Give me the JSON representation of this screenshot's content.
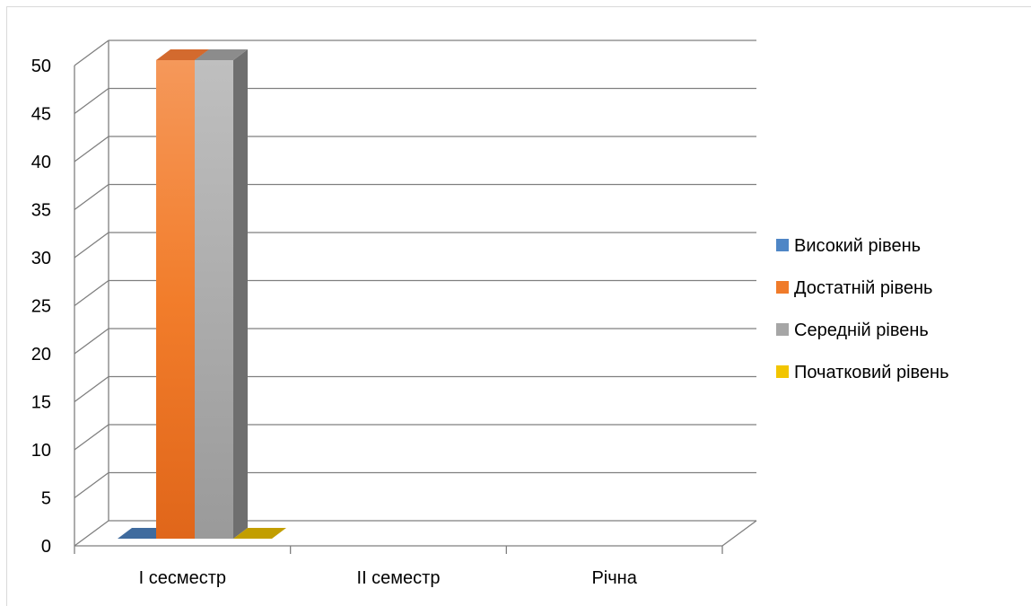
{
  "chart_data": {
    "type": "bar",
    "categories": [
      "І сесместр",
      "ІІ семестр",
      "Річна"
    ],
    "series": [
      {
        "name": "Високий рівень",
        "values": [
          0,
          0,
          0
        ]
      },
      {
        "name": "Достатній рівень",
        "values": [
          50,
          0,
          0
        ]
      },
      {
        "name": "Середній рівень",
        "values": [
          50,
          0,
          0
        ]
      },
      {
        "name": "Початковий рівень",
        "values": [
          0,
          0,
          0
        ]
      }
    ],
    "y_ticks": [
      0,
      5,
      10,
      15,
      20,
      25,
      30,
      35,
      40,
      45,
      50
    ],
    "ylim": [
      0,
      50
    ],
    "grid": true,
    "legend_position": "right",
    "style": "3d-clustered-column"
  },
  "colors": {
    "Високий рівень": "#4f86c6",
    "Достатній рівень": "#f07b2a",
    "Середній рівень": "#a6a6a6",
    "Початковий рівень": "#f2c500"
  }
}
